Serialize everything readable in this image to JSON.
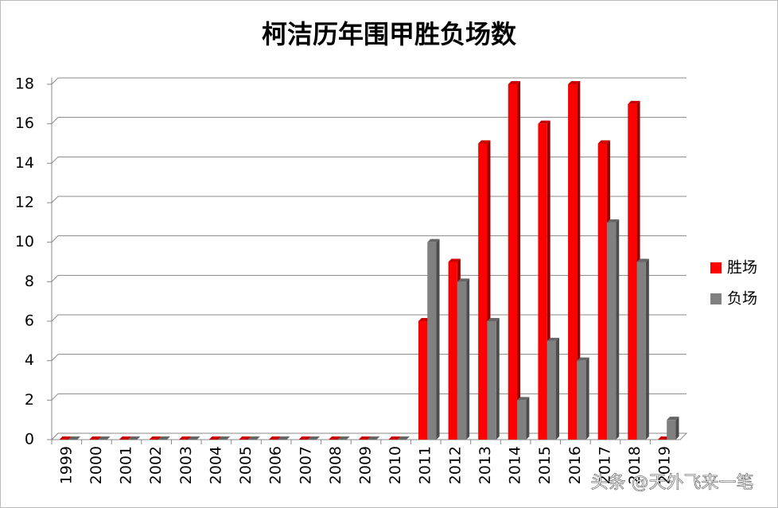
{
  "chart_data": {
    "type": "bar",
    "title": "柯洁历年围甲胜负场数",
    "categories": [
      "1999",
      "2000",
      "2001",
      "2002",
      "2003",
      "2004",
      "2005",
      "2006",
      "2007",
      "2008",
      "2009",
      "2010",
      "2011",
      "2012",
      "2013",
      "2014",
      "2015",
      "2016",
      "2017",
      "2018",
      "2019"
    ],
    "series": [
      {
        "name": "胜场",
        "color": "#ff0000",
        "values": [
          0,
          0,
          0,
          0,
          0,
          0,
          0,
          0,
          0,
          0,
          0,
          0,
          6,
          9,
          15,
          18,
          16,
          18,
          15,
          17,
          0
        ]
      },
      {
        "name": "负场",
        "color": "#808080",
        "values": [
          0,
          0,
          0,
          0,
          0,
          0,
          0,
          0,
          0,
          0,
          0,
          0,
          10,
          8,
          6,
          2,
          5,
          4,
          11,
          9,
          1
        ]
      }
    ],
    "ylim": [
      0,
      18
    ],
    "yticks": [
      0,
      2,
      4,
      6,
      8,
      10,
      12,
      14,
      16,
      18
    ],
    "grid": true,
    "legend": "right",
    "watermark": "头条 @天外飞来一笔"
  }
}
